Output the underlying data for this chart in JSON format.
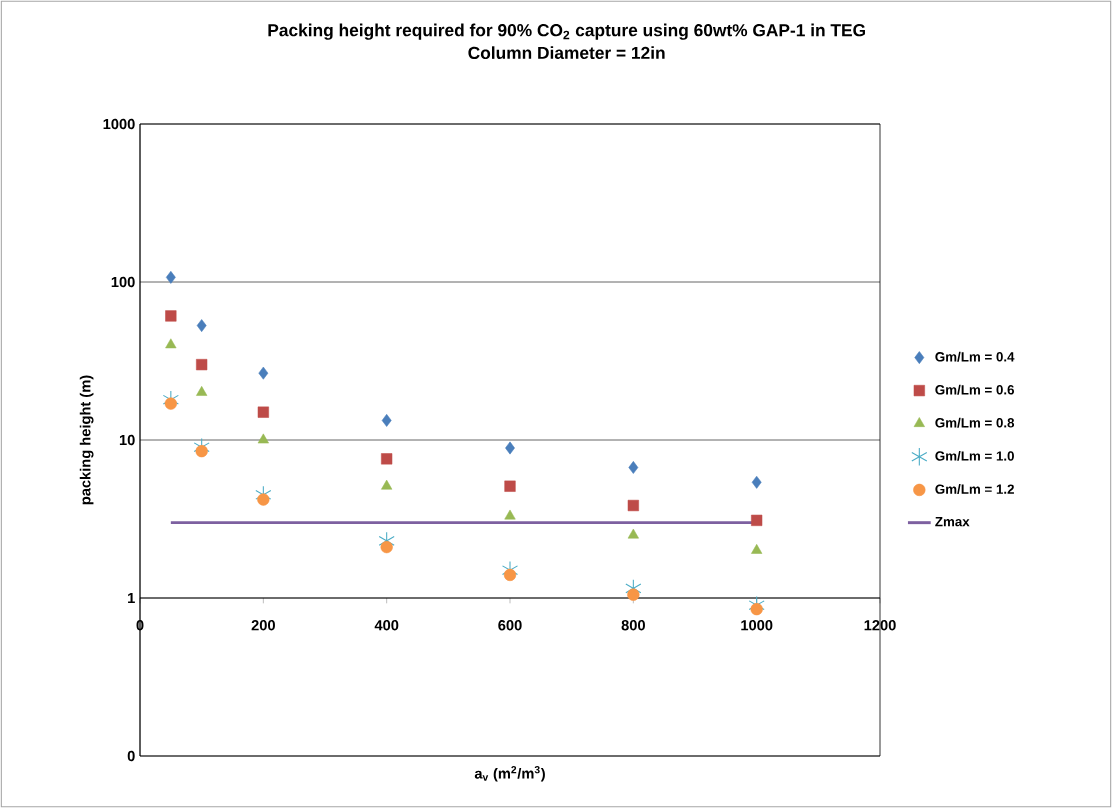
{
  "chart_data": {
    "type": "scatter",
    "title": "Packing height required for 90% CO$_{2}$ capture using 60wt% GAP-1 in TEG",
    "subtitle": "Column Diameter = 12in",
    "xlabel": "a$_{v}$ (m$^{2}$/m$^{3}$)",
    "ylabel": "packing height (m)",
    "x": [
      50,
      100,
      200,
      400,
      600,
      800,
      1000
    ],
    "series": [
      {
        "name": "Gm/Lm = 0.4",
        "color": "#4a7ebb",
        "marker": "diamond",
        "values": [
          107,
          53,
          26.5,
          13.3,
          8.9,
          6.7,
          5.4
        ]
      },
      {
        "name": "Gm/Lm = 0.6",
        "color": "#be4b48",
        "marker": "square",
        "values": [
          61,
          30,
          15,
          7.6,
          5.1,
          3.85,
          3.1
        ]
      },
      {
        "name": "Gm/Lm = 0.8",
        "color": "#98b954",
        "marker": "triangle",
        "values": [
          40,
          20,
          10,
          5.1,
          3.3,
          2.5,
          2.0
        ]
      },
      {
        "name": "Gm/Lm = 1.0",
        "color": "#4bacc6",
        "marker": "cross",
        "values": [
          18,
          9,
          4.5,
          2.3,
          1.5,
          1.15,
          0.9
        ]
      },
      {
        "name": "Gm/Lm = 1.2",
        "color": "#f79646",
        "marker": "circle",
        "values": [
          17,
          8.5,
          4.2,
          2.1,
          1.4,
          1.05,
          0.85
        ]
      },
      {
        "name": "Zmax",
        "type": "line",
        "color": "#7d60a0",
        "marker": "none",
        "x": [
          50,
          1000
        ],
        "values": [
          3,
          3
        ]
      }
    ],
    "xlim": [
      0,
      1200
    ],
    "xticks": [
      0,
      200,
      400,
      600,
      800,
      1000,
      1200
    ],
    "ylim": [
      0.1,
      1000
    ],
    "yticks": [
      {
        "value": 0.1,
        "label": "0"
      },
      1,
      10,
      100,
      1000
    ],
    "log": "y",
    "grid": "y",
    "legend": "right"
  }
}
